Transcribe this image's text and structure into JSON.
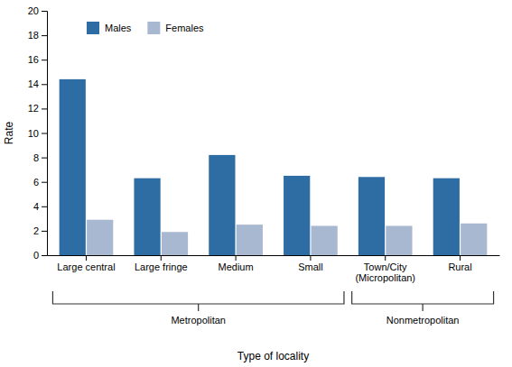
{
  "chart_data": {
    "type": "bar",
    "categories": [
      "Large central",
      "Large fringe",
      "Medium",
      "Small",
      "Town/City\n(Micropolitan)",
      "Rural"
    ],
    "series": [
      {
        "name": "Males",
        "color": "#2e6da4",
        "values": [
          14.4,
          6.3,
          8.2,
          6.5,
          6.4,
          6.3
        ]
      },
      {
        "name": "Females",
        "color": "#a8b8d0",
        "values": [
          2.9,
          1.9,
          2.5,
          2.4,
          2.4,
          2.6
        ]
      }
    ],
    "ylim": [
      0,
      20
    ],
    "yticks": [
      0,
      2,
      4,
      6,
      8,
      10,
      12,
      14,
      16,
      18,
      20
    ],
    "ylabel": "Rate",
    "xlabel": "Type of locality",
    "annotations": [
      {
        "text": "Metropolitan",
        "from": "Large central",
        "to": "Small"
      },
      {
        "text": "Nonmetropolitan",
        "from": "Town/City\n(Micropolitan)",
        "to": "Rural"
      }
    ],
    "legend": "upper left",
    "grid": false
  }
}
